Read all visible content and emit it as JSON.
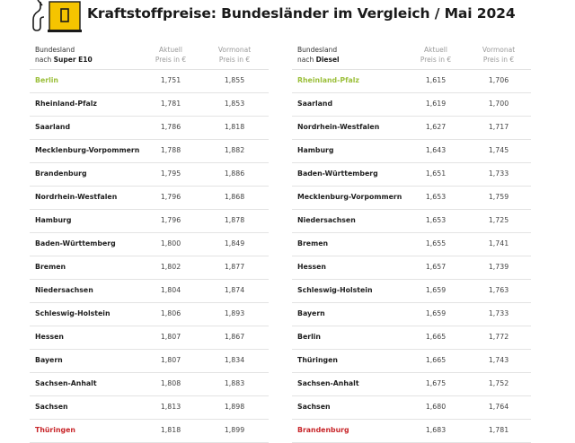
{
  "header": {
    "icon": "fuel-pump-icon",
    "title": "Kraftstoffpreise: Bundesländer im Vergleich / Mai 2024",
    "accent_color": "#f5c400"
  },
  "colors": {
    "best": "#9bbf3a",
    "worst": "#c8262a",
    "text": "#1e1e1e",
    "muted": "#9a9a9a"
  },
  "tables": {
    "e10": {
      "col_land_line1": "Bundesland",
      "col_land_line2_prefix": "nach ",
      "col_land_line2_fuel": "Super E10",
      "col_current_line1": "Aktuell",
      "col_current_line2": "Preis in €",
      "col_prev_line1": "Vormonat",
      "col_prev_line2": "Preis in €",
      "rows": [
        {
          "land": "Berlin",
          "current": "1,751",
          "previous": "1,855"
        },
        {
          "land": "Rheinland-Pfalz",
          "current": "1,781",
          "previous": "1,853"
        },
        {
          "land": "Saarland",
          "current": "1,786",
          "previous": "1,818"
        },
        {
          "land": "Mecklenburg-Vorpommern",
          "current": "1,788",
          "previous": "1,882"
        },
        {
          "land": "Brandenburg",
          "current": "1,795",
          "previous": "1,886"
        },
        {
          "land": "Nordrhein-Westfalen",
          "current": "1,796",
          "previous": "1,868"
        },
        {
          "land": "Hamburg",
          "current": "1,796",
          "previous": "1,878"
        },
        {
          "land": "Baden-Württemberg",
          "current": "1,800",
          "previous": "1,849"
        },
        {
          "land": "Bremen",
          "current": "1,802",
          "previous": "1,877"
        },
        {
          "land": "Niedersachsen",
          "current": "1,804",
          "previous": "1,874"
        },
        {
          "land": "Schleswig-Holstein",
          "current": "1,806",
          "previous": "1,893"
        },
        {
          "land": "Hessen",
          "current": "1,807",
          "previous": "1,867"
        },
        {
          "land": "Bayern",
          "current": "1,807",
          "previous": "1,834"
        },
        {
          "land": "Sachsen-Anhalt",
          "current": "1,808",
          "previous": "1,883"
        },
        {
          "land": "Sachsen",
          "current": "1,813",
          "previous": "1,898"
        },
        {
          "land": "Thüringen",
          "current": "1,818",
          "previous": "1,899"
        }
      ]
    },
    "diesel": {
      "col_land_line1": "Bundesland",
      "col_land_line2_prefix": "nach ",
      "col_land_line2_fuel": "Diesel",
      "col_current_line1": "Aktuell",
      "col_current_line2": "Preis in €",
      "col_prev_line1": "Vormonat",
      "col_prev_line2": "Preis in €",
      "rows": [
        {
          "land": "Rheinland-Pfalz",
          "current": "1,615",
          "previous": "1,706"
        },
        {
          "land": "Saarland",
          "current": "1,619",
          "previous": "1,700"
        },
        {
          "land": "Nordrhein-Westfalen",
          "current": "1,627",
          "previous": "1,717"
        },
        {
          "land": "Hamburg",
          "current": "1,643",
          "previous": "1,745"
        },
        {
          "land": "Baden-Württemberg",
          "current": "1,651",
          "previous": "1,733"
        },
        {
          "land": "Mecklenburg-Vorpommern",
          "current": "1,653",
          "previous": "1,759"
        },
        {
          "land": "Niedersachsen",
          "current": "1,653",
          "previous": "1,725"
        },
        {
          "land": "Bremen",
          "current": "1,655",
          "previous": "1,741"
        },
        {
          "land": "Hessen",
          "current": "1,657",
          "previous": "1,739"
        },
        {
          "land": "Schleswig-Holstein",
          "current": "1,659",
          "previous": "1,763"
        },
        {
          "land": "Bayern",
          "current": "1,659",
          "previous": "1,733"
        },
        {
          "land": "Berlin",
          "current": "1,665",
          "previous": "1,772"
        },
        {
          "land": "Thüringen",
          "current": "1,665",
          "previous": "1,743"
        },
        {
          "land": "Sachsen-Anhalt",
          "current": "1,675",
          "previous": "1,752"
        },
        {
          "land": "Sachsen",
          "current": "1,680",
          "previous": "1,764"
        },
        {
          "land": "Brandenburg",
          "current": "1,683",
          "previous": "1,781"
        }
      ]
    }
  }
}
